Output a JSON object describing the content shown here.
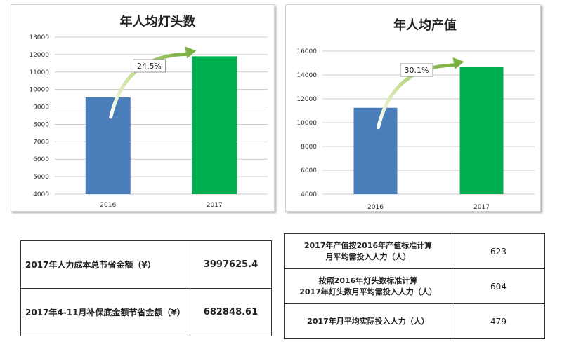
{
  "chart_data": [
    {
      "type": "bar",
      "title": "年人均灯头数",
      "categories": [
        "2016",
        "2017"
      ],
      "values": [
        9550,
        11900
      ],
      "colors": [
        "#4a7ebb",
        "#00b050"
      ],
      "yticks": [
        4000,
        5000,
        6000,
        7000,
        8000,
        9000,
        10000,
        11000,
        12000,
        13000
      ],
      "ylim": [
        4000,
        13000
      ],
      "grid": true,
      "annotation": "24.5%"
    },
    {
      "type": "bar",
      "title": "年人均产值",
      "categories": [
        "2016",
        "2017"
      ],
      "values": [
        11250,
        14650
      ],
      "colors": [
        "#4a7ebb",
        "#00b050"
      ],
      "yticks": [
        4000,
        6000,
        8000,
        10000,
        12000,
        14000,
        16000
      ],
      "ylim": [
        4000,
        16000
      ],
      "grid": true,
      "annotation": "30.1%"
    }
  ],
  "savings_table": {
    "rows": [
      {
        "label": "2017年人力成本总节省金额（¥）",
        "value": "3997625.4"
      },
      {
        "label": "2017年4-11月补保底金额节省金额（¥）",
        "value": "682848.61"
      }
    ]
  },
  "staffing_table": {
    "rows": [
      {
        "label": "2017年产值按2016年产值标准计算\n月平均需投入人力（人）",
        "value": "623"
      },
      {
        "label": "按照2016年灯头数标准计算\n2017年灯头数月平均需投入人力（人）",
        "value": "604"
      },
      {
        "label": "2017年月平均实际投入人力（人）",
        "value": "479"
      }
    ]
  }
}
